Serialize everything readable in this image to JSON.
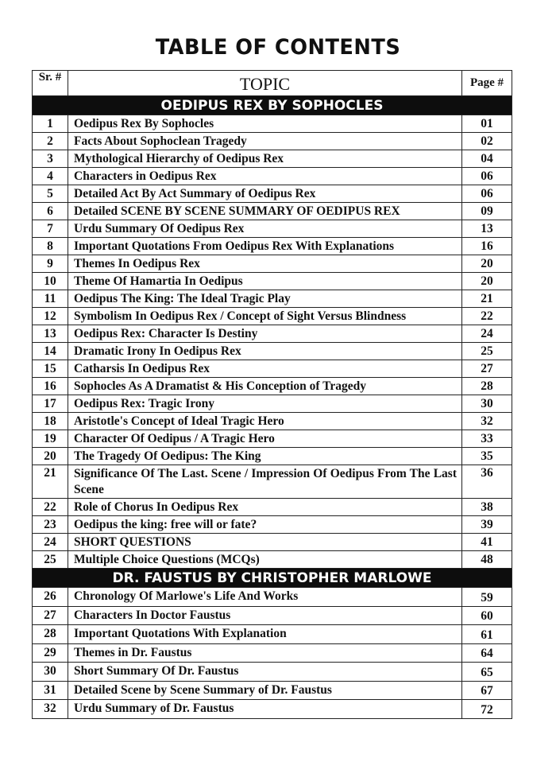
{
  "title": "TABLE OF CONTENTS",
  "headers": {
    "sr": "Sr. #",
    "topic": "TOPIC",
    "page": "Page #"
  },
  "sections": [
    {
      "heading": "OEDIPUS REX BY SOPHOCLES",
      "rows": [
        {
          "sr": "1",
          "topic": "Oedipus Rex By Sophocles",
          "page": "01"
        },
        {
          "sr": "2",
          "topic": "Facts About Sophoclean Tragedy",
          "page": "02"
        },
        {
          "sr": "3",
          "topic": "Mythological Hierarchy of Oedipus Rex",
          "page": "04"
        },
        {
          "sr": "4",
          "topic": "Characters in Oedipus Rex",
          "page": "06"
        },
        {
          "sr": "5",
          "topic": "Detailed Act By Act Summary of Oedipus Rex",
          "page": "06"
        },
        {
          "sr": "6",
          "topic": "Detailed SCENE BY SCENE SUMMARY OF OEDIPUS REX",
          "page": "09"
        },
        {
          "sr": "7",
          "topic": "Urdu Summary Of Oedipus Rex",
          "page": "13"
        },
        {
          "sr": "8",
          "topic": "Important Quotations From Oedipus Rex With Explanations",
          "page": "16"
        },
        {
          "sr": "9",
          "topic": "Themes In Oedipus Rex",
          "page": "20"
        },
        {
          "sr": "10",
          "topic": "Theme Of Hamartia In Oedipus",
          "page": "20"
        },
        {
          "sr": "11",
          "topic": "Oedipus The King: The Ideal Tragic Play",
          "page": "21"
        },
        {
          "sr": "12",
          "topic": "Symbolism In Oedipus Rex / Concept of Sight Versus Blindness",
          "page": "22"
        },
        {
          "sr": "13",
          "topic": "Oedipus Rex: Character Is Destiny",
          "page": "24"
        },
        {
          "sr": "14",
          "topic": "Dramatic Irony In Oedipus Rex",
          "page": "25"
        },
        {
          "sr": "15",
          "topic": "Catharsis In Oedipus Rex",
          "page": "27"
        },
        {
          "sr": "16",
          "topic": "Sophocles As A Dramatist & His Conception of Tragedy",
          "page": "28"
        },
        {
          "sr": "17",
          "topic": "Oedipus Rex: Tragic Irony",
          "page": "30"
        },
        {
          "sr": "18",
          "topic": "Aristotle's Concept of Ideal Tragic Hero",
          "page": "32"
        },
        {
          "sr": "19",
          "topic": "Character Of Oedipus / A Tragic Hero",
          "page": "33"
        },
        {
          "sr": "20",
          "topic": "The Tragedy Of Oedipus: The King",
          "page": "35"
        },
        {
          "sr": "21",
          "topic": "Significance Of The Last. Scene / Impression Of Oedipus From The Last Scene",
          "page": "36"
        },
        {
          "sr": "22",
          "topic": "Role of Chorus In Oedipus Rex",
          "page": "38"
        },
        {
          "sr": "23",
          "topic": "Oedipus the king: free will or fate?",
          "page": "39"
        },
        {
          "sr": "24",
          "topic": "SHORT QUESTIONS",
          "page": "41"
        },
        {
          "sr": "25",
          "topic": "Multiple Choice Questions (MCQs)",
          "page": "48"
        }
      ]
    },
    {
      "heading": "DR. FAUSTUS BY CHRISTOPHER MARLOWE",
      "rows": [
        {
          "sr": "26",
          "topic": "Chronology Of Marlowe's Life And Works",
          "page": "59"
        },
        {
          "sr": "27",
          "topic": "Characters In Doctor Faustus",
          "page": "60"
        },
        {
          "sr": "28",
          "topic": "Important Quotations With Explanation",
          "page": "61"
        },
        {
          "sr": "29",
          "topic": "Themes in Dr. Faustus",
          "page": "64"
        },
        {
          "sr": "30",
          "topic": "Short Summary Of Dr. Faustus",
          "page": "65"
        },
        {
          "sr": "31",
          "topic": "Detailed Scene by Scene Summary of Dr. Faustus",
          "page": "67"
        },
        {
          "sr": "32",
          "topic": "Urdu Summary of Dr. Faustus",
          "page": "72"
        }
      ]
    }
  ]
}
